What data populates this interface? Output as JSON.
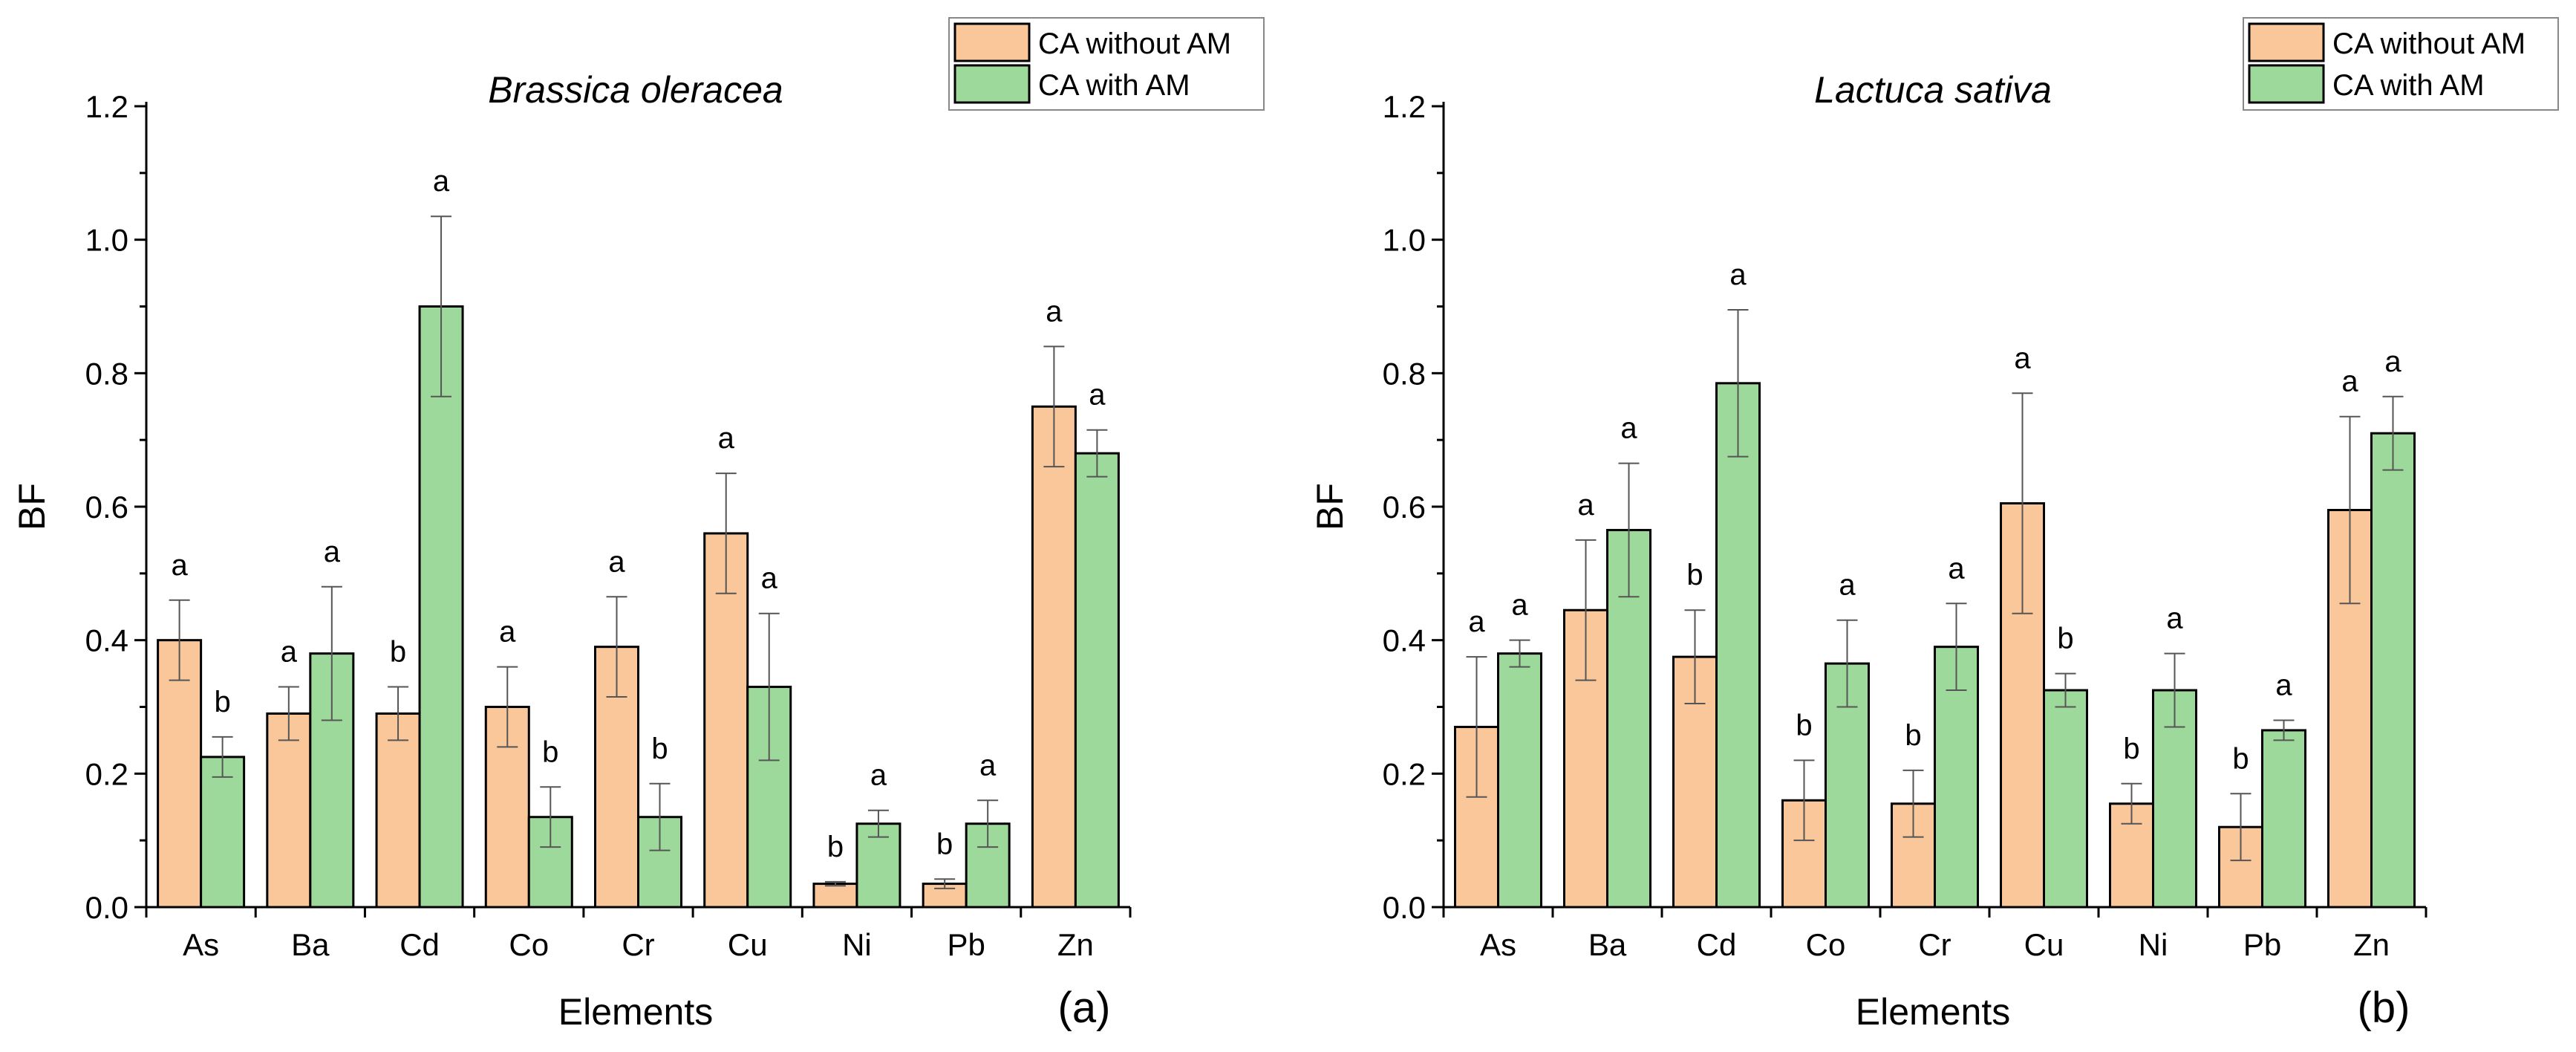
{
  "chart_data": [
    {
      "type": "bar",
      "panel_label": "(a)",
      "title": "Brassica oleracea",
      "xlabel": "Elements",
      "ylabel": "BF",
      "ylim": [
        0,
        1.2
      ],
      "yticks": [
        "0.0",
        "0.2",
        "0.4",
        "0.6",
        "0.8",
        "1.0",
        "1.2"
      ],
      "categories": [
        "As",
        "Ba",
        "Cd",
        "Co",
        "Cr",
        "Cu",
        "Ni",
        "Pb",
        "Zn"
      ],
      "legend_position": "top-right",
      "series": [
        {
          "name": "CA without AM",
          "color": "#FAC79A",
          "values": [
            0.4,
            0.29,
            0.29,
            0.3,
            0.39,
            0.56,
            0.035,
            0.035,
            0.75
          ],
          "errors": [
            0.06,
            0.04,
            0.04,
            0.06,
            0.075,
            0.09,
            0.003,
            0.007,
            0.09
          ],
          "letters": [
            "a",
            "a",
            "b",
            "a",
            "a",
            "a",
            "b",
            "b",
            "a"
          ]
        },
        {
          "name": "CA with AM",
          "color": "#9ED99C",
          "values": [
            0.225,
            0.38,
            0.9,
            0.135,
            0.135,
            0.33,
            0.125,
            0.125,
            0.68
          ],
          "errors": [
            0.03,
            0.1,
            0.135,
            0.045,
            0.05,
            0.11,
            0.02,
            0.035,
            0.035
          ],
          "letters": [
            "b",
            "a",
            "a",
            "b",
            "b",
            "a",
            "a",
            "a",
            "a"
          ]
        }
      ]
    },
    {
      "type": "bar",
      "panel_label": "(b)",
      "title": "Lactuca sativa",
      "xlabel": "Elements",
      "ylabel": "BF",
      "ylim": [
        0,
        1.2
      ],
      "yticks": [
        "0.0",
        "0.2",
        "0.4",
        "0.6",
        "0.8",
        "1.0",
        "1.2"
      ],
      "categories": [
        "As",
        "Ba",
        "Cd",
        "Co",
        "Cr",
        "Cu",
        "Ni",
        "Pb",
        "Zn"
      ],
      "legend_position": "top-right",
      "series": [
        {
          "name": "CA without AM",
          "color": "#FAC79A",
          "values": [
            0.27,
            0.445,
            0.375,
            0.16,
            0.155,
            0.605,
            0.155,
            0.12,
            0.595
          ],
          "errors": [
            0.105,
            0.105,
            0.07,
            0.06,
            0.05,
            0.165,
            0.03,
            0.05,
            0.14
          ],
          "letters": [
            "a",
            "a",
            "b",
            "b",
            "b",
            "a",
            "b",
            "b",
            "a"
          ]
        },
        {
          "name": "CA with AM",
          "color": "#9ED99C",
          "values": [
            0.38,
            0.565,
            0.785,
            0.365,
            0.39,
            0.325,
            0.325,
            0.265,
            0.71
          ],
          "errors": [
            0.02,
            0.1,
            0.11,
            0.065,
            0.065,
            0.025,
            0.055,
            0.015,
            0.055
          ],
          "letters": [
            "a",
            "a",
            "a",
            "a",
            "a",
            "b",
            "a",
            "a",
            "a"
          ]
        }
      ]
    }
  ]
}
